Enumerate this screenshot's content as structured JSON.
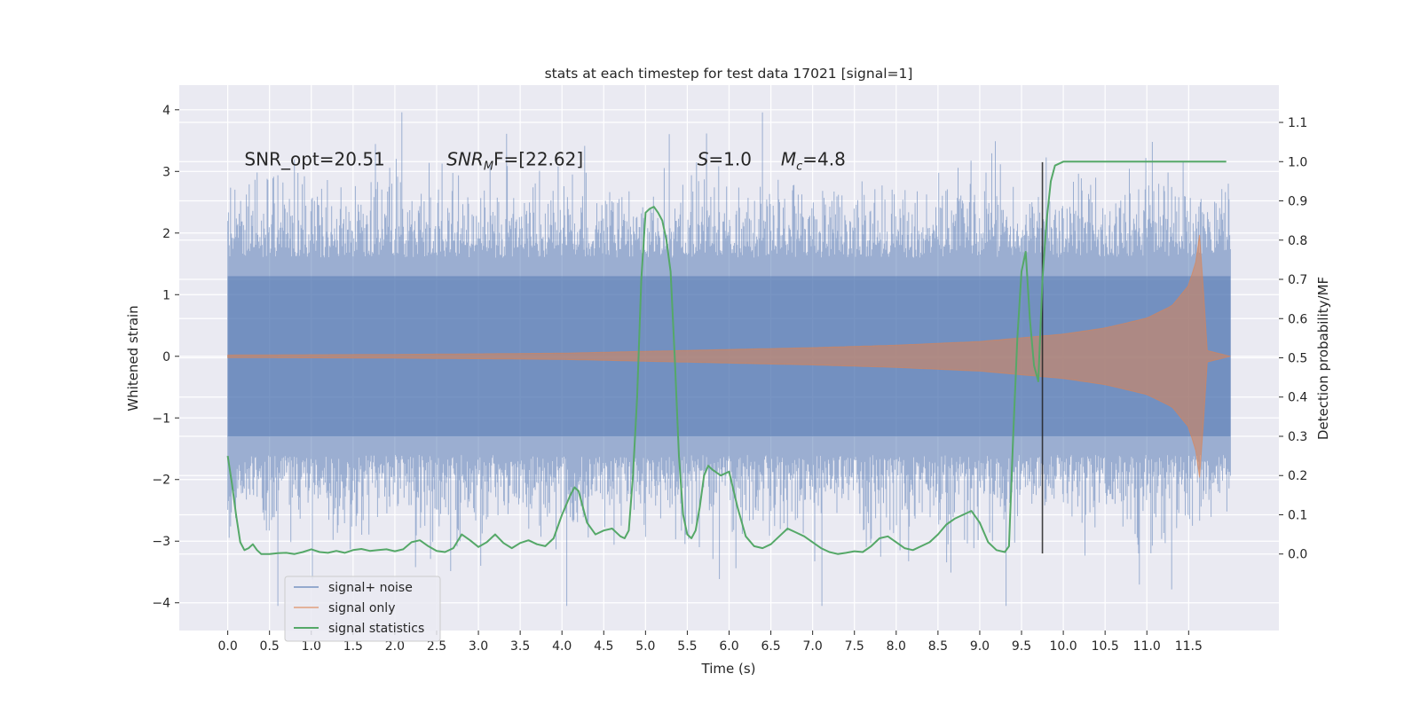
{
  "chart_data": {
    "type": "line",
    "title": "stats at each timestep for test data 17021 [signal=1]",
    "xlabel": "Time (s)",
    "ylabel_left": "Whitened strain",
    "ylabel_right": "Detection probability/MF",
    "xlim": [
      -0.58,
      12.58
    ],
    "ylim_left": [
      -4.45,
      4.4
    ],
    "ylim_right": [
      -0.195,
      1.195
    ],
    "xticks": [
      0.0,
      0.5,
      1.0,
      1.5,
      2.0,
      2.5,
      3.0,
      3.5,
      4.0,
      4.5,
      5.0,
      5.5,
      6.0,
      6.5,
      7.0,
      7.5,
      8.0,
      8.5,
      9.0,
      9.5,
      10.0,
      10.5,
      11.0,
      11.5
    ],
    "xtick_labels": [
      "0.0",
      "0.5",
      "1.0",
      "1.5",
      "2.0",
      "2.5",
      "3.0",
      "3.5",
      "4.0",
      "4.5",
      "5.0",
      "5.5",
      "6.0",
      "6.5",
      "7.0",
      "7.5",
      "8.0",
      "8.5",
      "9.0",
      "9.5",
      "10.0",
      "10.5",
      "11.0",
      "11.5"
    ],
    "yticks_left": [
      -4,
      -3,
      -2,
      -1,
      0,
      1,
      2,
      3,
      4
    ],
    "ytick_labels_left": [
      "−4",
      "−3",
      "−2",
      "−1",
      "0",
      "1",
      "2",
      "3",
      "4"
    ],
    "yticks_right": [
      0.0,
      0.1,
      0.2,
      0.3,
      0.4,
      0.5,
      0.6,
      0.7,
      0.8,
      0.9,
      1.0,
      1.1
    ],
    "ytick_labels_right": [
      "0.0",
      "0.1",
      "0.2",
      "0.3",
      "0.4",
      "0.5",
      "0.6",
      "0.7",
      "0.8",
      "0.9",
      "1.0",
      "1.1"
    ],
    "grid": true,
    "annotations": [
      {
        "text": "SNR_opt=20.51",
        "x": 0.2,
        "y": 3.2
      },
      {
        "base": "SNR",
        "sub": "M",
        "rest": "F=[22.62]",
        "x": 2.62,
        "y": 3.2
      },
      {
        "base": "S",
        "sub": "",
        "rest": "=1.0",
        "x": 5.62,
        "y": 3.2
      },
      {
        "base": "M",
        "sub": "c",
        "rest": "=4.8",
        "x": 6.62,
        "y": 3.2
      }
    ],
    "noise_series": {
      "name": "signal+ noise",
      "color": "#4c72b0",
      "t_start": 0.0,
      "t_end": 12.0,
      "dense_band": [
        -1.3,
        1.3
      ],
      "typical_envelope": [
        -2.4,
        2.4
      ],
      "extreme_max": 4.05,
      "extreme_min": -4.05
    },
    "signal_series": {
      "name": "signal only",
      "color": "#dd8452",
      "t_start": 0.0,
      "t_merger": 11.65,
      "t_end": 12.0,
      "envelope": [
        {
          "t": 0.0,
          "a": 0.02
        },
        {
          "t": 2.0,
          "a": 0.03
        },
        {
          "t": 4.0,
          "a": 0.05
        },
        {
          "t": 5.0,
          "a": 0.08
        },
        {
          "t": 6.0,
          "a": 0.11
        },
        {
          "t": 7.0,
          "a": 0.14
        },
        {
          "t": 8.0,
          "a": 0.18
        },
        {
          "t": 9.0,
          "a": 0.24
        },
        {
          "t": 10.0,
          "a": 0.36
        },
        {
          "t": 10.5,
          "a": 0.46
        },
        {
          "t": 11.0,
          "a": 0.62
        },
        {
          "t": 11.3,
          "a": 0.82
        },
        {
          "t": 11.5,
          "a": 1.15
        },
        {
          "t": 11.6,
          "a": 1.6
        },
        {
          "t": 11.65,
          "a": 2.2
        },
        {
          "t": 11.7,
          "a": 0.1
        },
        {
          "t": 12.0,
          "a": 0.0
        }
      ]
    },
    "statistic_series": {
      "name": "signal statistics",
      "color": "#55a868",
      "x": [
        0.0,
        0.05,
        0.1,
        0.15,
        0.2,
        0.25,
        0.3,
        0.35,
        0.4,
        0.45,
        0.5,
        0.6,
        0.7,
        0.8,
        0.9,
        1.0,
        1.1,
        1.2,
        1.3,
        1.4,
        1.5,
        1.6,
        1.7,
        1.8,
        1.9,
        2.0,
        2.1,
        2.2,
        2.3,
        2.4,
        2.5,
        2.6,
        2.7,
        2.8,
        2.9,
        3.0,
        3.1,
        3.2,
        3.3,
        3.4,
        3.5,
        3.6,
        3.7,
        3.8,
        3.9,
        4.0,
        4.1,
        4.15,
        4.2,
        4.3,
        4.4,
        4.5,
        4.6,
        4.7,
        4.75,
        4.8,
        4.85,
        4.9,
        4.95,
        5.0,
        5.05,
        5.1,
        5.15,
        5.2,
        5.25,
        5.3,
        5.35,
        5.4,
        5.45,
        5.5,
        5.55,
        5.6,
        5.65,
        5.7,
        5.75,
        5.8,
        5.9,
        6.0,
        6.1,
        6.2,
        6.3,
        6.4,
        6.5,
        6.6,
        6.7,
        6.8,
        6.9,
        7.0,
        7.1,
        7.2,
        7.3,
        7.4,
        7.5,
        7.6,
        7.7,
        7.8,
        7.9,
        8.0,
        8.1,
        8.2,
        8.3,
        8.4,
        8.5,
        8.6,
        8.7,
        8.8,
        8.9,
        9.0,
        9.1,
        9.2,
        9.3,
        9.35,
        9.4,
        9.45,
        9.5,
        9.55,
        9.6,
        9.65,
        9.7,
        9.75,
        9.8,
        9.85,
        9.9,
        10.0,
        10.5,
        11.0,
        11.5,
        11.95
      ],
      "y": [
        0.25,
        0.18,
        0.1,
        0.03,
        0.01,
        0.015,
        0.025,
        0.01,
        0.0,
        0.0,
        0.0,
        0.002,
        0.003,
        0.0,
        0.005,
        0.012,
        0.005,
        0.003,
        0.008,
        0.003,
        0.01,
        0.013,
        0.008,
        0.01,
        0.012,
        0.007,
        0.012,
        0.03,
        0.035,
        0.02,
        0.008,
        0.005,
        0.015,
        0.05,
        0.035,
        0.018,
        0.03,
        0.05,
        0.028,
        0.015,
        0.028,
        0.035,
        0.025,
        0.02,
        0.04,
        0.1,
        0.15,
        0.17,
        0.16,
        0.08,
        0.05,
        0.06,
        0.065,
        0.045,
        0.04,
        0.06,
        0.2,
        0.4,
        0.7,
        0.87,
        0.88,
        0.885,
        0.87,
        0.85,
        0.8,
        0.72,
        0.5,
        0.25,
        0.1,
        0.05,
        0.04,
        0.06,
        0.12,
        0.2,
        0.225,
        0.215,
        0.2,
        0.21,
        0.12,
        0.045,
        0.02,
        0.015,
        0.025,
        0.045,
        0.065,
        0.055,
        0.045,
        0.03,
        0.015,
        0.005,
        0.0,
        0.003,
        0.007,
        0.005,
        0.02,
        0.04,
        0.045,
        0.03,
        0.015,
        0.01,
        0.02,
        0.03,
        0.05,
        0.075,
        0.09,
        0.1,
        0.11,
        0.08,
        0.03,
        0.01,
        0.005,
        0.02,
        0.3,
        0.55,
        0.72,
        0.77,
        0.6,
        0.48,
        0.44,
        0.7,
        0.85,
        0.95,
        0.99,
        1.0,
        1.0,
        1.0,
        1.0,
        1.0
      ]
    },
    "vertical_marker": {
      "x": 9.75,
      "y_bottom": -3.2,
      "y_top": 3.15,
      "color": "#222222"
    },
    "legend": {
      "position": "lower-left",
      "entries": [
        {
          "label": "signal+ noise",
          "color": "#4c72b0",
          "opacity": 0.55
        },
        {
          "label": "signal only",
          "color": "#dd8452",
          "opacity": 0.55
        },
        {
          "label": "signal statistics",
          "color": "#55a868",
          "opacity": 1
        }
      ]
    },
    "background": "#eaeaf2"
  }
}
